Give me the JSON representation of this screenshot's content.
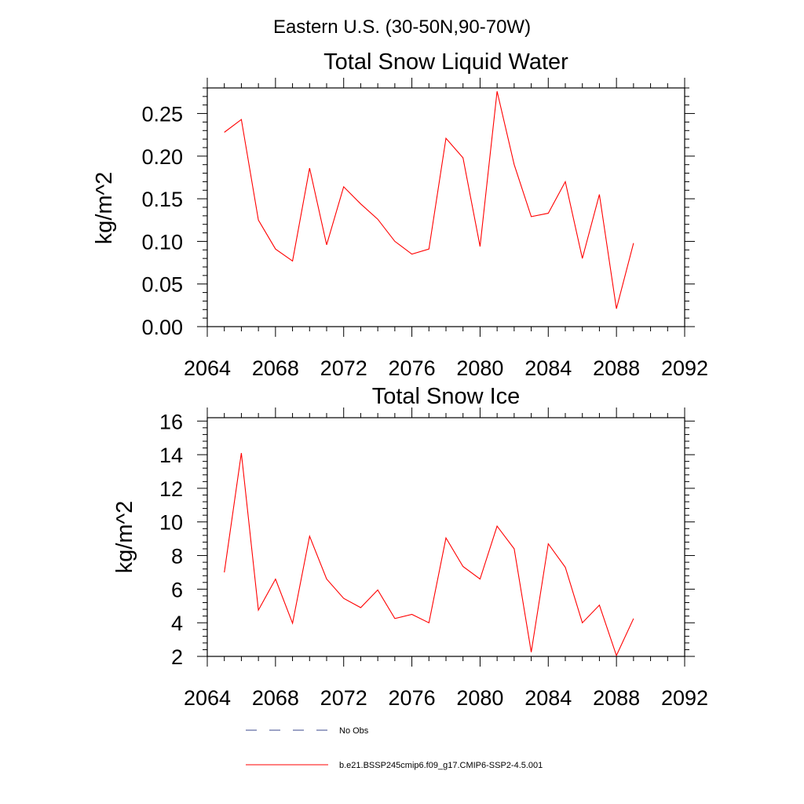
{
  "figure_title": "Eastern U.S. (30-50N,90-70W)",
  "chart_data": [
    {
      "type": "line",
      "title": "Total Snow Liquid Water",
      "xlabel": "",
      "ylabel": "kg/m^2",
      "xlim": [
        2064,
        2092
      ],
      "ylim": [
        0,
        0.28
      ],
      "xticks": [
        2064,
        2068,
        2072,
        2076,
        2080,
        2084,
        2088,
        2092
      ],
      "xtick_labels": [
        "2064",
        "2068",
        "2072",
        "2076",
        "2080",
        "2084",
        "2088",
        "2092"
      ],
      "yticks": [
        0,
        0.05,
        0.1,
        0.15,
        0.2,
        0.25
      ],
      "ytick_labels": [
        "0.00",
        "0.05",
        "0.10",
        "0.15",
        "0.20",
        "0.25"
      ],
      "grid": false,
      "series": [
        {
          "name": "b.e21.BSSP245cmip6.f09_g17.CMIP6-SSP2-4.5.001",
          "color": "#ff0000",
          "x": [
            2065,
            2066,
            2067,
            2068,
            2069,
            2070,
            2071,
            2072,
            2073,
            2074,
            2075,
            2076,
            2077,
            2078,
            2079,
            2080,
            2081,
            2082,
            2083,
            2084,
            2085,
            2086,
            2087,
            2088,
            2089
          ],
          "values": [
            0.228,
            0.243,
            0.125,
            0.091,
            0.077,
            0.186,
            0.096,
            0.164,
            0.144,
            0.126,
            0.1,
            0.085,
            0.091,
            0.221,
            0.198,
            0.094,
            0.276,
            0.19,
            0.129,
            0.133,
            0.17,
            0.08,
            0.155,
            0.021,
            0.098
          ]
        }
      ]
    },
    {
      "type": "line",
      "title": "Total Snow Ice",
      "xlabel": "",
      "ylabel": "kg/m^2",
      "xlim": [
        2064,
        2092
      ],
      "ylim": [
        2,
        16.2
      ],
      "xticks": [
        2064,
        2068,
        2072,
        2076,
        2080,
        2084,
        2088,
        2092
      ],
      "xtick_labels": [
        "2064",
        "2068",
        "2072",
        "2076",
        "2080",
        "2084",
        "2088",
        "2092"
      ],
      "yticks": [
        2,
        4,
        6,
        8,
        10,
        12,
        14,
        16
      ],
      "ytick_labels": [
        "2",
        "4",
        "6",
        "8",
        "10",
        "12",
        "14",
        "16"
      ],
      "grid": false,
      "series": [
        {
          "name": "b.e21.BSSP245cmip6.f09_g17.CMIP6-SSP2-4.5.001",
          "color": "#ff0000",
          "x": [
            2065,
            2066,
            2067,
            2068,
            2069,
            2070,
            2071,
            2072,
            2073,
            2074,
            2075,
            2076,
            2077,
            2078,
            2079,
            2080,
            2081,
            2082,
            2083,
            2084,
            2085,
            2086,
            2087,
            2088,
            2089
          ],
          "values": [
            7.0,
            14.1,
            4.75,
            6.6,
            3.97,
            9.15,
            6.6,
            5.45,
            4.9,
            5.95,
            4.25,
            4.5,
            4.0,
            9.05,
            7.35,
            6.6,
            9.75,
            8.4,
            2.25,
            8.7,
            7.3,
            4.0,
            5.05,
            2.05,
            4.25
          ]
        }
      ]
    }
  ],
  "legend": {
    "position": "bottom",
    "items": [
      {
        "label": "No Obs",
        "style": "dashed",
        "color": "#3b4a8c"
      },
      {
        "label": "b.e21.BSSP245cmip6.f09_g17.CMIP6-SSP2-4.5.001",
        "style": "solid",
        "color": "#ff0000"
      }
    ]
  }
}
